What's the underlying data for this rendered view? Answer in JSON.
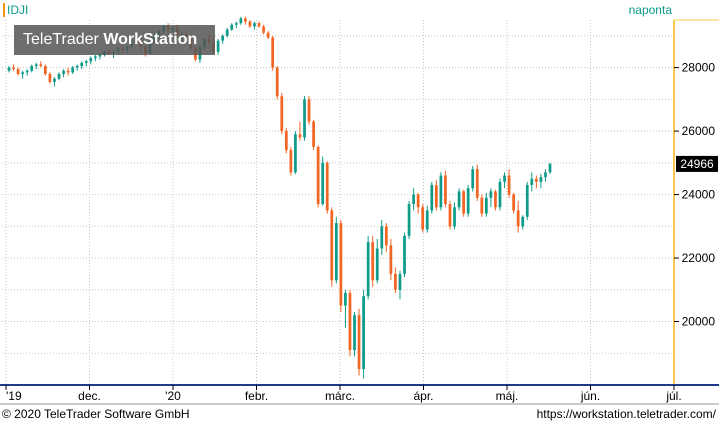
{
  "header": {
    "symbol": "IDJI",
    "interval": "naponta"
  },
  "watermark": {
    "brand_regular": "TeleTrader ",
    "brand_bold": "WorkStation"
  },
  "footer": {
    "copyright": "© 2020 TeleTrader Software GmbH",
    "url": "https://workstation.teletrader.com/"
  },
  "colors": {
    "up": "#0e9b8a",
    "down": "#f26522",
    "grid": "#c8c8c8",
    "axis": "#000000",
    "right_axis_border": "#f7c948",
    "bottom_axis_border": "#1e3a8a",
    "last_price_bg": "#000000",
    "last_price_text": "#ffffff"
  },
  "chart_data": {
    "type": "candlestick",
    "symbol": "IDJI",
    "interval": "naponta",
    "ylim": [
      18000,
      29500
    ],
    "y_ticks": [
      20000,
      22000,
      24000,
      26000,
      28000
    ],
    "x_tick_labels": [
      "'19",
      "dec.",
      "'20",
      "febr.",
      "márc.",
      "ápr.",
      "máj.",
      "jún.",
      "júl."
    ],
    "last_price": "24966",
    "last_price_value": 24966,
    "candles": [
      [
        27900,
        28050,
        27850,
        28000
      ],
      [
        28000,
        28100,
        27900,
        27950
      ],
      [
        27950,
        28000,
        27750,
        27800
      ],
      [
        27800,
        27900,
        27650,
        27850
      ],
      [
        27850,
        27950,
        27750,
        27900
      ],
      [
        27900,
        28100,
        27850,
        28050
      ],
      [
        28050,
        28150,
        27950,
        28100
      ],
      [
        28100,
        28200,
        28000,
        28050
      ],
      [
        28050,
        28100,
        27750,
        27800
      ],
      [
        27800,
        27850,
        27500,
        27550
      ],
      [
        27550,
        27700,
        27400,
        27650
      ],
      [
        27650,
        27850,
        27600,
        27800
      ],
      [
        27800,
        27950,
        27700,
        27900
      ],
      [
        27900,
        28000,
        27750,
        27850
      ],
      [
        27850,
        28050,
        27800,
        28000
      ],
      [
        28000,
        28100,
        27900,
        28050
      ],
      [
        28050,
        28200,
        27950,
        28150
      ],
      [
        28150,
        28250,
        28050,
        28200
      ],
      [
        28200,
        28350,
        28100,
        28300
      ],
      [
        28300,
        28400,
        28200,
        28350
      ],
      [
        28350,
        28450,
        28250,
        28400
      ],
      [
        28400,
        28550,
        28350,
        28500
      ],
      [
        28500,
        28600,
        28400,
        28450
      ],
      [
        28450,
        28550,
        28300,
        28500
      ],
      [
        28500,
        28650,
        28400,
        28600
      ],
      [
        28600,
        28700,
        28450,
        28550
      ],
      [
        28550,
        28700,
        28450,
        28650
      ],
      [
        28650,
        28900,
        28600,
        28850
      ],
      [
        28850,
        29050,
        28750,
        28950
      ],
      [
        28950,
        29000,
        28500,
        28650
      ],
      [
        28650,
        28700,
        28350,
        28450
      ],
      [
        28450,
        28850,
        28400,
        28800
      ],
      [
        28800,
        29100,
        28750,
        29050
      ],
      [
        29050,
        29200,
        28900,
        29150
      ],
      [
        29150,
        29350,
        29050,
        29300
      ],
      [
        29300,
        29400,
        29100,
        29200
      ],
      [
        29200,
        29300,
        29100,
        29250
      ],
      [
        29250,
        29350,
        28950,
        29000
      ],
      [
        29000,
        29100,
        28800,
        29050
      ],
      [
        29050,
        29200,
        28900,
        28950
      ],
      [
        28950,
        29000,
        28550,
        28600
      ],
      [
        28600,
        28700,
        28200,
        28250
      ],
      [
        28250,
        28700,
        28150,
        28650
      ],
      [
        28650,
        28950,
        28550,
        28900
      ],
      [
        28900,
        29050,
        28700,
        28800
      ],
      [
        28800,
        28950,
        28450,
        28500
      ],
      [
        28500,
        28900,
        28400,
        28850
      ],
      [
        28850,
        29050,
        28750,
        29000
      ],
      [
        29000,
        29250,
        28950,
        29200
      ],
      [
        29200,
        29400,
        29150,
        29350
      ],
      [
        29350,
        29450,
        29250,
        29400
      ],
      [
        29400,
        29600,
        29350,
        29550
      ],
      [
        29550,
        29600,
        29350,
        29450
      ],
      [
        29450,
        29500,
        29250,
        29300
      ],
      [
        29300,
        29450,
        29200,
        29400
      ],
      [
        29400,
        29450,
        29250,
        29300
      ],
      [
        29300,
        29350,
        29050,
        29100
      ],
      [
        29100,
        29150,
        28900,
        28950
      ],
      [
        28950,
        29000,
        27900,
        28000
      ],
      [
        28000,
        28050,
        27000,
        27100
      ],
      [
        27100,
        27200,
        25900,
        26000
      ],
      [
        26000,
        26100,
        25300,
        25400
      ],
      [
        25400,
        25500,
        24600,
        24700
      ],
      [
        24700,
        26000,
        24650,
        25900
      ],
      [
        25900,
        26300,
        25700,
        25800
      ],
      [
        25800,
        27100,
        25700,
        27000
      ],
      [
        27000,
        27100,
        26200,
        26300
      ],
      [
        26300,
        26350,
        25400,
        25500
      ],
      [
        25500,
        25550,
        23600,
        23700
      ],
      [
        23700,
        25200,
        23650,
        25000
      ],
      [
        25000,
        25050,
        23400,
        23500
      ],
      [
        23500,
        23600,
        21100,
        21300
      ],
      [
        21300,
        23300,
        21200,
        23100
      ],
      [
        23100,
        23200,
        20300,
        20500
      ],
      [
        20500,
        21000,
        19800,
        20900
      ],
      [
        20900,
        21000,
        18900,
        19100
      ],
      [
        19100,
        20300,
        18900,
        20200
      ],
      [
        20200,
        20400,
        18300,
        18500
      ],
      [
        18500,
        21000,
        18200,
        20800
      ],
      [
        20800,
        22700,
        20700,
        22500
      ],
      [
        22500,
        22700,
        21100,
        21300
      ],
      [
        21300,
        22600,
        21200,
        22300
      ],
      [
        22300,
        23200,
        22100,
        23000
      ],
      [
        23000,
        23100,
        22200,
        22400
      ],
      [
        22400,
        22600,
        21300,
        21500
      ],
      [
        21500,
        21700,
        20900,
        21000
      ],
      [
        21000,
        21600,
        20700,
        21500
      ],
      [
        21500,
        22800,
        21400,
        22700
      ],
      [
        22700,
        23800,
        22600,
        23700
      ],
      [
        23700,
        24200,
        23500,
        24000
      ],
      [
        24000,
        24050,
        23400,
        23600
      ],
      [
        23600,
        23700,
        22800,
        22900
      ],
      [
        22900,
        23650,
        22800,
        23500
      ],
      [
        23500,
        24400,
        23400,
        24300
      ],
      [
        24300,
        24450,
        23500,
        23600
      ],
      [
        23600,
        24700,
        23500,
        24600
      ],
      [
        24600,
        24750,
        23600,
        23700
      ],
      [
        23700,
        23800,
        22900,
        23000
      ],
      [
        23000,
        23750,
        22900,
        23600
      ],
      [
        23600,
        24200,
        23500,
        24100
      ],
      [
        24100,
        24150,
        23300,
        23400
      ],
      [
        23400,
        24300,
        23300,
        24200
      ],
      [
        24200,
        24900,
        24100,
        24800
      ],
      [
        24800,
        24950,
        23800,
        23900
      ],
      [
        23900,
        24000,
        23300,
        23400
      ],
      [
        23400,
        24050,
        23300,
        23900
      ],
      [
        23900,
        24200,
        23600,
        24100
      ],
      [
        24100,
        24150,
        23500,
        23600
      ],
      [
        23600,
        24500,
        23500,
        24400
      ],
      [
        24400,
        24700,
        24200,
        24600
      ],
      [
        24600,
        24800,
        23900,
        24000
      ],
      [
        24000,
        24050,
        23400,
        23500
      ],
      [
        23500,
        23800,
        22800,
        23000
      ],
      [
        23000,
        23350,
        22900,
        23300
      ],
      [
        23300,
        24400,
        23200,
        24300
      ],
      [
        24300,
        24700,
        24100,
        24500
      ],
      [
        24500,
        24600,
        24200,
        24400
      ],
      [
        24400,
        24650,
        24200,
        24550
      ],
      [
        24550,
        24800,
        24400,
        24700
      ],
      [
        24700,
        25000,
        24650,
        24966
      ]
    ]
  }
}
